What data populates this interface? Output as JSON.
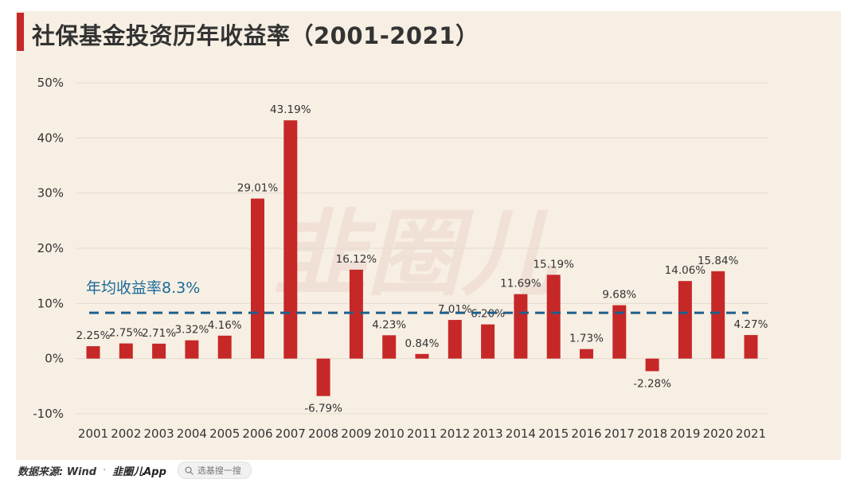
{
  "title": "社保基金投资历年收益率（2001-2021）",
  "footer": {
    "source": "数据来源: Wind",
    "separator": "·",
    "brand": "韭圈儿App",
    "search_placeholder": "选基搜一搜"
  },
  "colors": {
    "bar": "#c62828",
    "avg_line": "#1f5f8b",
    "avg_label": "#1a6a9a",
    "grid": "#e3dccf",
    "text": "#333333",
    "watermark": "#e7c6bf"
  },
  "watermark": "韭圈儿",
  "chart_data": {
    "type": "bar",
    "categories": [
      "2001",
      "2002",
      "2003",
      "2004",
      "2005",
      "2006",
      "2007",
      "2008",
      "2009",
      "2010",
      "2011",
      "2012",
      "2013",
      "2014",
      "2015",
      "2016",
      "2017",
      "2018",
      "2019",
      "2020",
      "2021"
    ],
    "values": [
      2.25,
      2.75,
      2.71,
      3.32,
      4.16,
      29.01,
      43.19,
      -6.79,
      16.12,
      4.23,
      0.84,
      7.01,
      6.2,
      11.69,
      15.19,
      1.73,
      9.68,
      -2.28,
      14.06,
      15.84,
      4.27
    ],
    "data_labels": [
      "2.25%",
      "2.75%",
      "2.71%",
      "3.32%",
      "4.16%",
      "29.01%",
      "43.19%",
      "-6.79%",
      "16.12%",
      "4.23%",
      "0.84%",
      "7.01%",
      "6.20%",
      "11.69%",
      "15.19%",
      "1.73%",
      "9.68%",
      "-2.28%",
      "14.06%",
      "15.84%",
      "4.27%"
    ],
    "ylim": [
      -10,
      50
    ],
    "yticks": [
      -10,
      0,
      10,
      20,
      30,
      40,
      50
    ],
    "ytick_labels": [
      "-10%",
      "0%",
      "10%",
      "20%",
      "30%",
      "40%",
      "50%"
    ],
    "grid": true,
    "legend": "none",
    "reference_line": {
      "value": 8.3,
      "label": "年均收益率8.3%",
      "style": "dashed"
    }
  }
}
